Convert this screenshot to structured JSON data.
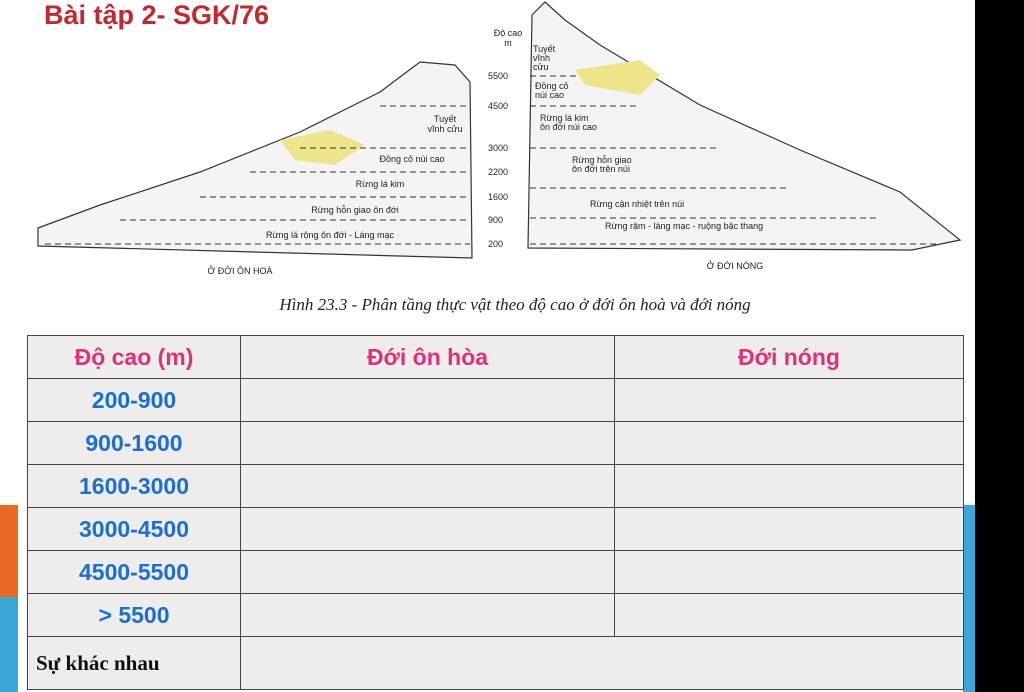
{
  "title": "Bài tập 2- SGK/76",
  "figure": {
    "axis_label": [
      "Độ cao",
      "m"
    ],
    "altitudes": [
      "5500",
      "4500",
      "3000",
      "2200",
      "1600",
      "900",
      "200"
    ],
    "left_zones": [
      [
        "Tuyết",
        "vĩnh cửu"
      ],
      [
        "Đồng cỏ núi cao"
      ],
      [
        "Rừng lá kim"
      ],
      [
        "Rừng hỗn giao ôn đới"
      ],
      [
        "Rừng lá rộng ôn đới - Láng mạc"
      ]
    ],
    "right_zones": [
      [
        "Tuyết",
        "vĩnh",
        "cửu"
      ],
      [
        "Đồng cỏ",
        "núi cao"
      ],
      [
        "Rừng lá kim",
        "ôn đới núi cao"
      ],
      [
        "Rừng hỗn giao",
        "ôn đới trên núi"
      ],
      [
        "Rừng cận nhiệt trên núi"
      ],
      [
        "Rừng rậm - làng mạc - ruộng bậc thang"
      ]
    ],
    "left_caption": "Ở ĐỚI ÔN HOÀ",
    "right_caption": "Ở ĐỚI NÓNG",
    "caption": "Hình 23.3 - Phân tầng thực vật theo độ cao ở đới ôn hoà và đới nóng"
  },
  "table": {
    "header": [
      "Độ cao (m)",
      "Đới ôn hòa",
      "Đới nóng"
    ],
    "rows": [
      "200-900",
      "900-1600",
      "1600-3000",
      "3000-4500",
      "4500-5500",
      "> 5500"
    ],
    "footer": "Sự khác nhau"
  }
}
